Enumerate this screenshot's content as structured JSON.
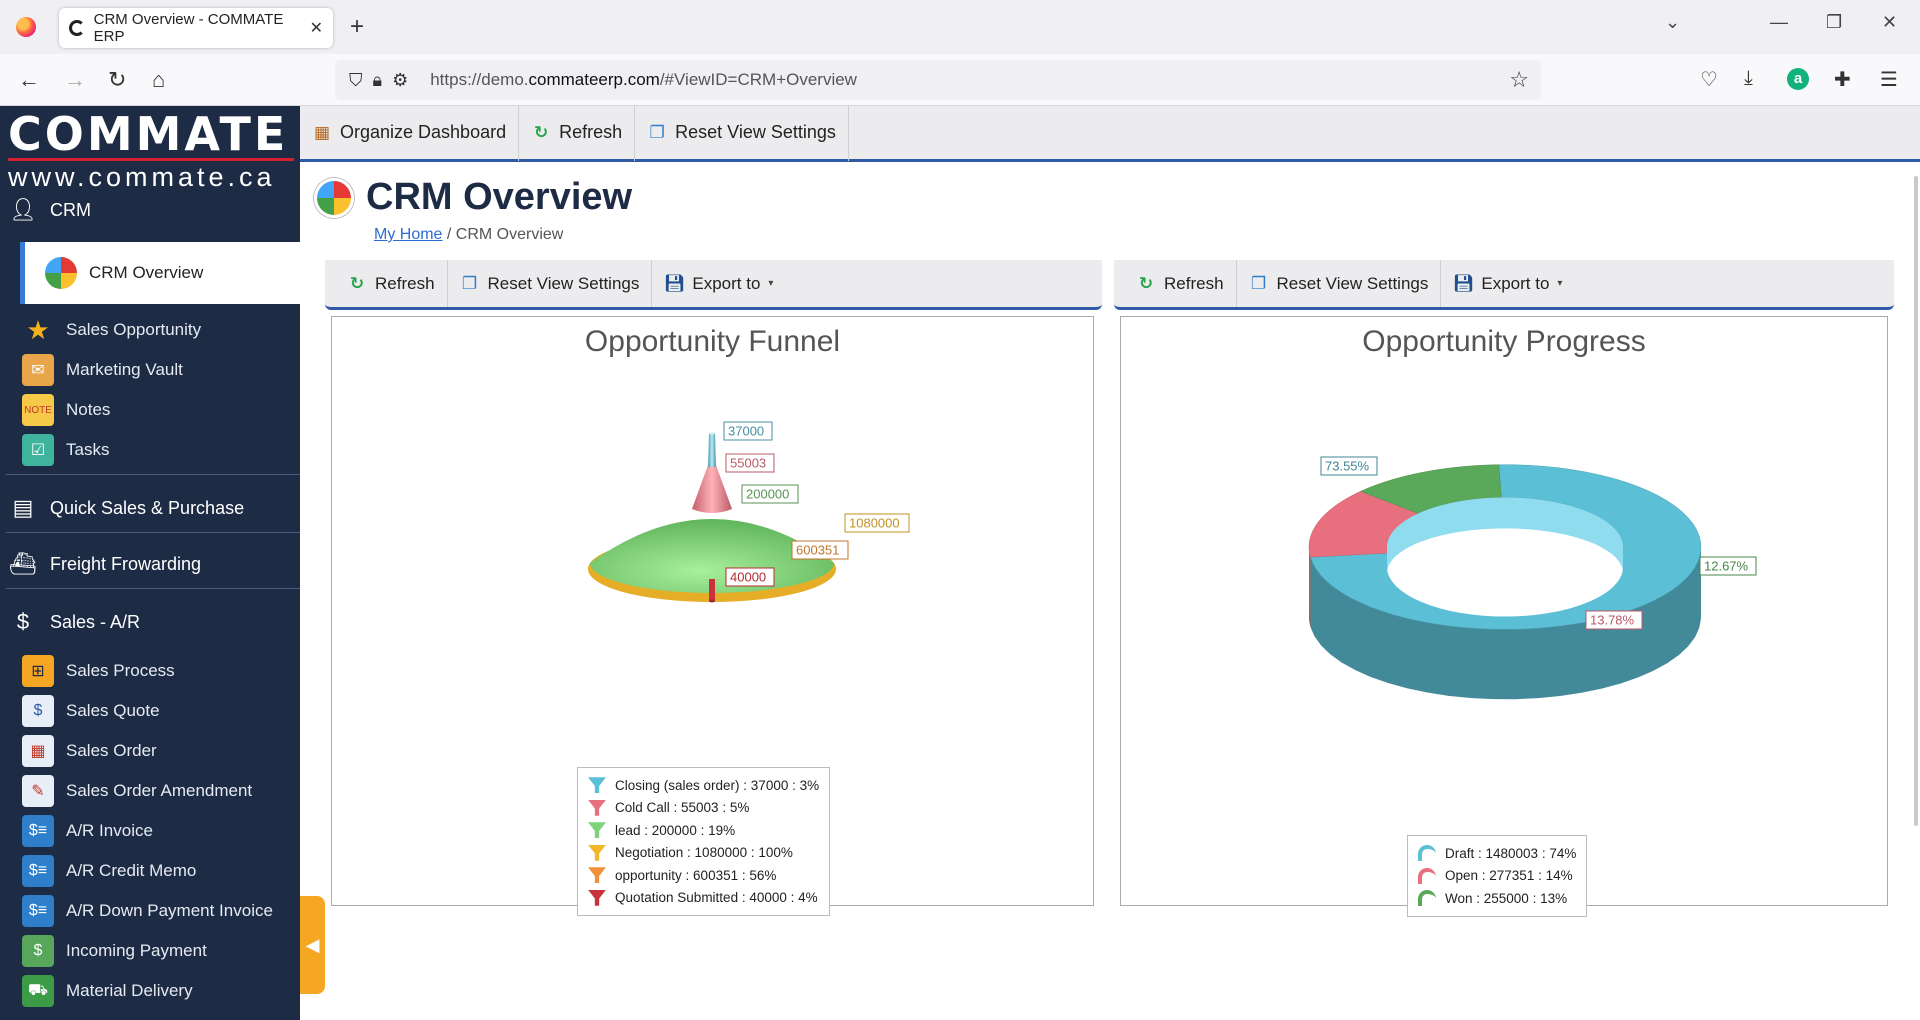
{
  "browser": {
    "tab_title": "CRM Overview - COMMATE ERP",
    "url_prefix": "https://demo.",
    "url_domain": "commateerp.com",
    "url_path": "/#ViewID=CRM+Overview"
  },
  "sidebar": {
    "logo": "COMMATE",
    "website": "www.commate.ca",
    "crm_header": "CRM",
    "crm_items": [
      {
        "label": "CRM Overview",
        "icon": "gauge-icon",
        "active": true
      },
      {
        "label": "Sales Opportunity",
        "icon": "star-icon"
      },
      {
        "label": "Marketing Vault",
        "icon": "vault-icon"
      },
      {
        "label": "Notes",
        "icon": "note-icon"
      },
      {
        "label": "Tasks",
        "icon": "tasks-icon"
      }
    ],
    "sections": [
      {
        "label": "Quick Sales & Purchase",
        "icon": "register-icon"
      },
      {
        "label": "Freight Frowarding",
        "icon": "ship-icon"
      },
      {
        "label": "Sales - A/R",
        "icon": "money-icon"
      }
    ],
    "sales_items": [
      {
        "label": "Sales Process",
        "icon": "process-icon"
      },
      {
        "label": "Sales Quote",
        "icon": "quote-icon"
      },
      {
        "label": "Sales Order",
        "icon": "order-icon"
      },
      {
        "label": "Sales Order Amendment",
        "icon": "amendment-icon"
      },
      {
        "label": "A/R Invoice",
        "icon": "invoice-icon"
      },
      {
        "label": "A/R Credit Memo",
        "icon": "credit-memo-icon"
      },
      {
        "label": "A/R Down Payment Invoice",
        "icon": "down-payment-icon"
      },
      {
        "label": "Incoming Payment",
        "icon": "payment-icon"
      },
      {
        "label": "Material Delivery",
        "icon": "truck-icon"
      }
    ]
  },
  "toolbar": {
    "organize": "Organize Dashboard",
    "refresh": "Refresh",
    "reset": "Reset View Settings"
  },
  "page": {
    "title": "CRM Overview",
    "breadcrumb_home": "My Home",
    "breadcrumb_sep": " / ",
    "breadcrumb_current": "CRM Overview"
  },
  "panel_toolbar": {
    "refresh": "Refresh",
    "reset": "Reset View Settings",
    "export": "Export to"
  },
  "chart_data": [
    {
      "type": "funnel",
      "title": "Opportunity Funnel",
      "categories": [
        "Closing (sales order)",
        "Cold Call",
        "lead",
        "Negotiation",
        "opportunity",
        "Quotation Submitted"
      ],
      "values": [
        37000,
        55003,
        200000,
        1080000,
        600351,
        40000
      ],
      "percents": [
        3,
        5,
        19,
        100,
        56,
        4
      ],
      "colors": [
        "#5bbfd6",
        "#e8707e",
        "#7fd17a",
        "#f2b728",
        "#f0913a",
        "#c8323a"
      ],
      "data_labels": [
        "37000",
        "55003",
        "200000",
        "1080000",
        "600351",
        "40000"
      ],
      "legend": [
        "Closing (sales order) : 37000 : 3%",
        "Cold Call : 55003 : 5%",
        "lead : 200000 : 19%",
        "Negotiation : 1080000 : 100%",
        "opportunity : 600351 : 56%",
        "Quotation Submitted : 40000 : 4%"
      ]
    },
    {
      "type": "pie",
      "variant": "donut-3d",
      "title": "Opportunity Progress",
      "categories": [
        "Draft",
        "Open",
        "Won"
      ],
      "values": [
        1480003,
        277351,
        255000
      ],
      "percents": [
        73.55,
        13.78,
        12.67
      ],
      "colors": [
        "#5bbfd6",
        "#e8707e",
        "#5aa85a"
      ],
      "data_labels": [
        "73.55%",
        "13.78%",
        "12.67%"
      ],
      "legend": [
        "Draft : 1480003 : 74%",
        "Open : 277351 : 14%",
        "Won : 255000 : 13%"
      ]
    }
  ]
}
